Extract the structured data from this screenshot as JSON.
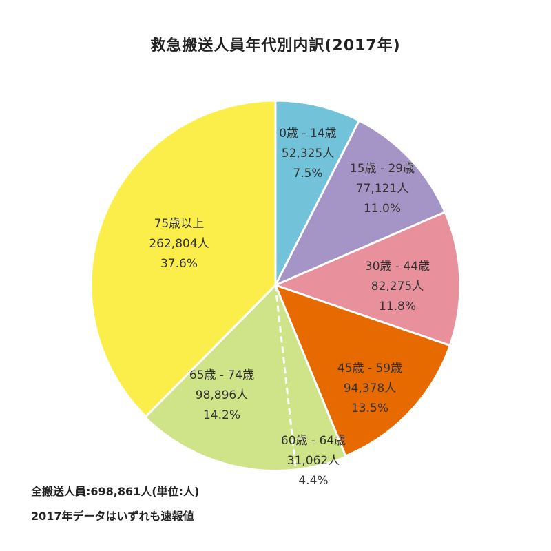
{
  "title": "救急搬送人員年代別内訳(2017年)",
  "footnotes": {
    "total": "全搬送人員:698,861人(単位:人)",
    "note": "2017年データはいずれも速報値"
  },
  "colors": {
    "0-14": "#72c2da",
    "15-29": "#a594c6",
    "30-44": "#e8909c",
    "45-59": "#e66a00",
    "60-64": "#cfe388",
    "65-74": "#cfe388",
    "75+": "#fbee4a"
  },
  "chart_data": {
    "type": "pie",
    "title": "救急搬送人員年代別内訳(2017年)",
    "total": 698861,
    "unit": "人",
    "slices": [
      {
        "key": "0-14",
        "name": "0歳 - 14歳",
        "count_label": "52,325人",
        "pct_label": "7.5%",
        "value": 52325
      },
      {
        "key": "15-29",
        "name": "15歳 - 29歳",
        "count_label": "77,121人",
        "pct_label": "11.0%",
        "value": 77121
      },
      {
        "key": "30-44",
        "name": "30歳 - 44歳",
        "count_label": "82,275人",
        "pct_label": "11.8%",
        "value": 82275
      },
      {
        "key": "45-59",
        "name": "45歳 - 59歳",
        "count_label": "94,378人",
        "pct_label": "13.5%",
        "value": 94378
      },
      {
        "key": "60-64",
        "name": "60歳 - 64歳",
        "count_label": "31,062人",
        "pct_label": "4.4%",
        "value": 31062
      },
      {
        "key": "65-74",
        "name": "65歳 - 74歳",
        "count_label": "98,896人",
        "pct_label": "14.2%",
        "value": 98896
      },
      {
        "key": "75+",
        "name": "75歳以上",
        "count_label": "262,804人",
        "pct_label": "37.6%",
        "value": 262804
      }
    ]
  }
}
